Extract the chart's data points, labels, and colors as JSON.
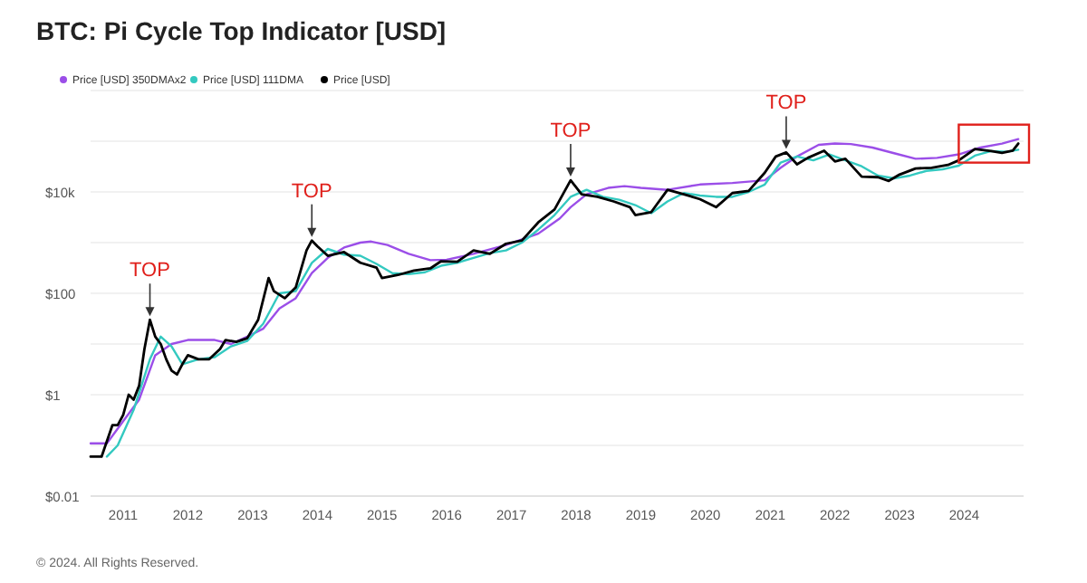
{
  "chart_data": {
    "type": "line",
    "title": "BTC: Pi Cycle Top Indicator [USD]",
    "legend": "top left",
    "grid": "y",
    "log": "y",
    "marker": "none",
    "line_style": "solid",
    "xlim": [
      "2010-07",
      "2024-12"
    ],
    "xticks": [
      {
        "value": "2011",
        "label": "2011"
      },
      {
        "value": "2012",
        "label": "2012"
      },
      {
        "value": "2013",
        "label": "2013"
      },
      {
        "value": "2014",
        "label": "2014"
      },
      {
        "value": "2015",
        "label": "2015"
      },
      {
        "value": "2016",
        "label": "2016"
      },
      {
        "value": "2017",
        "label": "2017"
      },
      {
        "value": "2018",
        "label": "2018"
      },
      {
        "value": "2019",
        "label": "2019"
      },
      {
        "value": "2020",
        "label": "2020"
      },
      {
        "value": "2021",
        "label": "2021"
      },
      {
        "value": "2022",
        "label": "2022"
      },
      {
        "value": "2023",
        "label": "2023"
      },
      {
        "value": "2024",
        "label": "2024"
      }
    ],
    "ylim": [
      0.01,
      1000000
    ],
    "yticks": [
      {
        "value": 0.01,
        "label": "$0.01"
      },
      {
        "value": 0.1,
        "label": null
      },
      {
        "value": 1,
        "label": "$1"
      },
      {
        "value": 10,
        "label": null
      },
      {
        "value": 100,
        "label": "$100"
      },
      {
        "value": 1000,
        "label": null
      },
      {
        "value": 10000,
        "label": "$10k"
      },
      {
        "value": 100000,
        "label": null
      },
      {
        "value": 1000000,
        "label": null
      }
    ],
    "series": [
      {
        "name": "Price [USD] 350DMAx2",
        "color": "#9b4ee8",
        "x": [
          "2010-07",
          "2010-10",
          "2011-01",
          "2011-04",
          "2011-07",
          "2011-10",
          "2012-01",
          "2012-06",
          "2012-09",
          "2012-12",
          "2013-03",
          "2013-06",
          "2013-09",
          "2013-12",
          "2014-03",
          "2014-06",
          "2014-09",
          "2014-11",
          "2015-02",
          "2015-06",
          "2015-10",
          "2016-01",
          "2016-06",
          "2016-12",
          "2017-06",
          "2017-10",
          "2017-12",
          "2018-03",
          "2018-07",
          "2018-10",
          "2019-01",
          "2019-06",
          "2019-12",
          "2020-06",
          "2020-12",
          "2021-03",
          "2021-06",
          "2021-10",
          "2022-01",
          "2022-04",
          "2022-08",
          "2022-12",
          "2023-04",
          "2023-08",
          "2023-12",
          "2024-04",
          "2024-08",
          "2024-11"
        ],
        "values": [
          0.11,
          0.11,
          0.3,
          0.8,
          6,
          10,
          12,
          12,
          10,
          14,
          20,
          50,
          80,
          250,
          500,
          800,
          1000,
          1050,
          900,
          600,
          450,
          460,
          600,
          900,
          1500,
          3000,
          5000,
          9000,
          12000,
          13000,
          12000,
          11000,
          14000,
          15000,
          17000,
          30000,
          50000,
          85000,
          90000,
          88000,
          75000,
          58000,
          45000,
          47000,
          55000,
          75000,
          90000,
          110000
        ]
      },
      {
        "name": "Price [USD] 111DMA",
        "color": "#33c9c0",
        "x": [
          "2010-10",
          "2010-12",
          "2011-03",
          "2011-06",
          "2011-08",
          "2011-10",
          "2011-12",
          "2012-03",
          "2012-06",
          "2012-09",
          "2012-12",
          "2013-03",
          "2013-06",
          "2013-09",
          "2013-12",
          "2014-03",
          "2014-06",
          "2014-09",
          "2014-12",
          "2015-03",
          "2015-06",
          "2015-09",
          "2015-12",
          "2016-03",
          "2016-06",
          "2016-09",
          "2016-12",
          "2017-03",
          "2017-06",
          "2017-09",
          "2017-12",
          "2018-03",
          "2018-06",
          "2018-09",
          "2018-12",
          "2019-03",
          "2019-06",
          "2019-09",
          "2019-12",
          "2020-03",
          "2020-06",
          "2020-09",
          "2020-12",
          "2021-03",
          "2021-06",
          "2021-09",
          "2021-12",
          "2022-03",
          "2022-06",
          "2022-09",
          "2022-12",
          "2023-03",
          "2023-06",
          "2023-09",
          "2023-12",
          "2024-03",
          "2024-06",
          "2024-09",
          "2024-11"
        ],
        "values": [
          0.06,
          0.1,
          0.5,
          5,
          14,
          9,
          4,
          5,
          5.5,
          9,
          11.5,
          25,
          100,
          110,
          400,
          750,
          580,
          550,
          380,
          250,
          240,
          260,
          350,
          400,
          500,
          620,
          700,
          1000,
          1800,
          3500,
          8000,
          11000,
          8000,
          7000,
          5500,
          3800,
          6500,
          9500,
          8500,
          8000,
          8000,
          10000,
          14000,
          38000,
          50000,
          42000,
          55000,
          42000,
          32000,
          21000,
          18500,
          21000,
          26000,
          28000,
          33000,
          52000,
          64000,
          62000,
          68000
        ]
      },
      {
        "name": "Price [USD]",
        "color": "#000000",
        "x": [
          "2010-07",
          "2010-09",
          "2010-11",
          "2010-12",
          "2011-01",
          "2011-02",
          "2011-03",
          "2011-04",
          "2011-05",
          "2011-06",
          "2011-07",
          "2011-08",
          "2011-09",
          "2011-10",
          "2011-11",
          "2011-12",
          "2012-01",
          "2012-03",
          "2012-05",
          "2012-07",
          "2012-08",
          "2012-10",
          "2012-12",
          "2013-02",
          "2013-04",
          "2013-05",
          "2013-07",
          "2013-09",
          "2013-11",
          "2013-12",
          "2014-01",
          "2014-03",
          "2014-06",
          "2014-09",
          "2014-12",
          "2015-01",
          "2015-04",
          "2015-07",
          "2015-10",
          "2015-12",
          "2016-03",
          "2016-06",
          "2016-09",
          "2016-12",
          "2017-03",
          "2017-06",
          "2017-09",
          "2017-12",
          "2018-02",
          "2018-05",
          "2018-08",
          "2018-11",
          "2018-12",
          "2019-03",
          "2019-06",
          "2019-09",
          "2019-12",
          "2020-03",
          "2020-06",
          "2020-09",
          "2020-12",
          "2021-02",
          "2021-04",
          "2021-06",
          "2021-08",
          "2021-11",
          "2022-01",
          "2022-03",
          "2022-06",
          "2022-09",
          "2022-11",
          "2023-01",
          "2023-04",
          "2023-07",
          "2023-10",
          "2023-12",
          "2024-03",
          "2024-06",
          "2024-08",
          "2024-10",
          "2024-11"
        ],
        "values": [
          0.06,
          0.06,
          0.25,
          0.25,
          0.4,
          1,
          0.8,
          1.5,
          8,
          30,
          14,
          10,
          5,
          3,
          2.5,
          4,
          6,
          5,
          5,
          8,
          12,
          11,
          13,
          30,
          200,
          110,
          80,
          130,
          700,
          1100,
          850,
          550,
          650,
          400,
          320,
          200,
          230,
          280,
          310,
          430,
          420,
          700,
          600,
          950,
          1100,
          2500,
          4500,
          17000,
          9000,
          8000,
          6500,
          5000,
          3500,
          4000,
          11000,
          9000,
          7200,
          5000,
          9500,
          10500,
          24000,
          50000,
          60000,
          35000,
          47000,
          65000,
          40000,
          45000,
          20000,
          19500,
          16500,
          22000,
          29000,
          30000,
          34000,
          42000,
          70000,
          64000,
          59000,
          65000,
          90000
        ]
      }
    ],
    "annotations": [
      {
        "text": "TOP",
        "x": "2011-06",
        "y": 30
      },
      {
        "text": "TOP",
        "x": "2013-12",
        "y": 1100
      },
      {
        "text": "TOP",
        "x": "2017-12",
        "y": 17000
      },
      {
        "text": "TOP",
        "x": "2021-04",
        "y": 60000
      },
      "© 2024. All Rights Reserved."
    ]
  }
}
